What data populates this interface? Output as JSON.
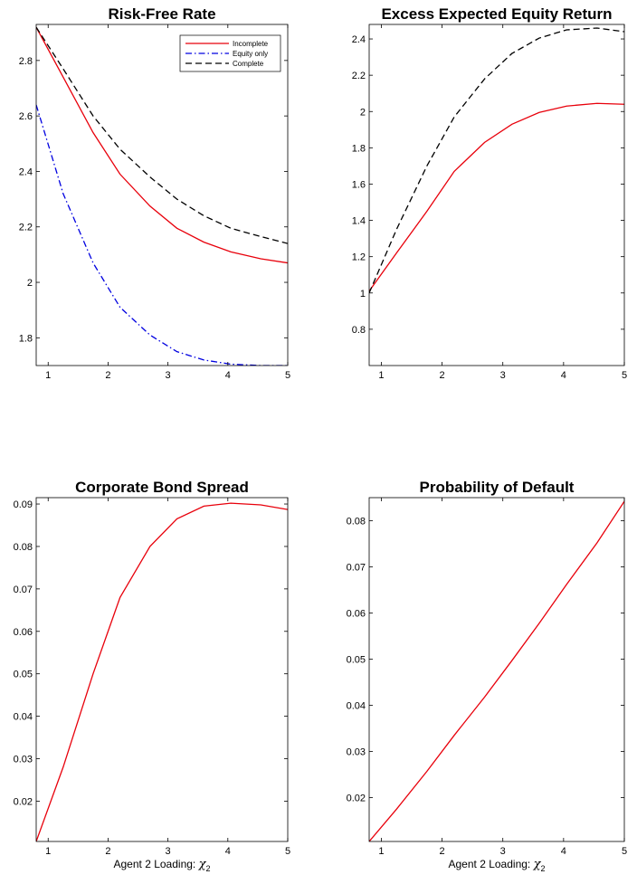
{
  "chart_data": [
    {
      "type": "line",
      "title": "Risk-Free Rate",
      "xlabel": "",
      "x": [
        0.8,
        1.25,
        1.75,
        2.2,
        2.7,
        3.15,
        3.6,
        4.05,
        4.55,
        5.0
      ],
      "xlim": [
        0.8,
        5
      ],
      "ylim": [
        1.7,
        2.93
      ],
      "xticks": [
        1,
        2,
        3,
        4,
        5
      ],
      "yticks": [
        1.8,
        2.0,
        2.2,
        2.4,
        2.6,
        2.8
      ],
      "ytick_labels": [
        "1.8",
        "2",
        "2.2",
        "2.4",
        "2.6",
        "2.8"
      ],
      "legend": "top-right",
      "series": [
        {
          "name": "Incomplete",
          "color": "#e8000b",
          "dash": "solid",
          "values": [
            2.92,
            2.74,
            2.54,
            2.39,
            2.275,
            2.195,
            2.145,
            2.11,
            2.085,
            2.07
          ]
        },
        {
          "name": "Equity only",
          "color": "#0000e0",
          "dash": "dashdot",
          "values": [
            2.64,
            2.32,
            2.07,
            1.91,
            1.81,
            1.75,
            1.72,
            1.705,
            1.7,
            1.7
          ]
        },
        {
          "name": "Complete",
          "color": "#000000",
          "dash": "dashed",
          "values": [
            2.92,
            2.77,
            2.6,
            2.48,
            2.38,
            2.3,
            2.24,
            2.195,
            2.165,
            2.14
          ]
        }
      ]
    },
    {
      "type": "line",
      "title": "Excess Expected Equity Return",
      "xlabel": "",
      "x": [
        0.8,
        1.25,
        1.75,
        2.2,
        2.7,
        3.15,
        3.6,
        4.05,
        4.55,
        5.0
      ],
      "xlim": [
        0.8,
        5
      ],
      "ylim": [
        0.6,
        2.48
      ],
      "xticks": [
        1,
        2,
        3,
        4,
        5
      ],
      "yticks": [
        0.8,
        1.0,
        1.2,
        1.4,
        1.6,
        1.8,
        2.0,
        2.2,
        2.4
      ],
      "ytick_labels": [
        "0.8",
        "1",
        "1.2",
        "1.4",
        "1.6",
        "1.8",
        "2",
        "2.2",
        "2.4"
      ],
      "series": [
        {
          "name": "",
          "color": "#e8000b",
          "dash": "solid",
          "values": [
            1.01,
            1.22,
            1.45,
            1.67,
            1.83,
            1.93,
            1.995,
            2.03,
            2.045,
            2.04
          ]
        },
        {
          "name": "",
          "color": "#000000",
          "dash": "dashed",
          "values": [
            1.0,
            1.35,
            1.7,
            1.97,
            2.18,
            2.32,
            2.405,
            2.45,
            2.46,
            2.44
          ]
        }
      ]
    },
    {
      "type": "line",
      "title": "Corporate Bond Spread",
      "xlabel_text": "Agent 2 Loading: ",
      "xlabel_symbol": "χ",
      "xlabel_sub": "2",
      "x": [
        0.8,
        1.25,
        1.75,
        2.2,
        2.7,
        3.15,
        3.6,
        4.05,
        4.55,
        5.0
      ],
      "xlim": [
        0.8,
        5
      ],
      "ylim": [
        0.0105,
        0.0915
      ],
      "xticks": [
        1,
        2,
        3,
        4,
        5
      ],
      "yticks": [
        0.02,
        0.03,
        0.04,
        0.05,
        0.06,
        0.07,
        0.08,
        0.09
      ],
      "ytick_labels": [
        "0.02",
        "0.03",
        "0.04",
        "0.05",
        "0.06",
        "0.07",
        "0.08",
        "0.09"
      ],
      "series": [
        {
          "name": "",
          "color": "#e8000b",
          "dash": "solid",
          "values": [
            0.0105,
            0.028,
            0.05,
            0.068,
            0.08,
            0.0865,
            0.0895,
            0.0902,
            0.0898,
            0.0887
          ]
        }
      ]
    },
    {
      "type": "line",
      "title": "Probability of Default",
      "xlabel_text": "Agent 2 Loading: ",
      "xlabel_symbol": "χ",
      "xlabel_sub": "2",
      "x": [
        0.8,
        1.25,
        1.75,
        2.2,
        2.7,
        3.15,
        3.6,
        4.05,
        4.55,
        5.0
      ],
      "xlim": [
        0.8,
        5
      ],
      "ylim": [
        0.0105,
        0.085
      ],
      "xticks": [
        1,
        2,
        3,
        4,
        5
      ],
      "yticks": [
        0.02,
        0.03,
        0.04,
        0.05,
        0.06,
        0.07,
        0.08
      ],
      "ytick_labels": [
        "0.02",
        "0.03",
        "0.04",
        "0.05",
        "0.06",
        "0.07",
        "0.08"
      ],
      "series": [
        {
          "name": "",
          "color": "#e8000b",
          "dash": "solid",
          "values": [
            0.0105,
            0.0175,
            0.0257,
            0.0335,
            0.0418,
            0.0497,
            0.0578,
            0.0662,
            0.0752,
            0.0842
          ]
        }
      ]
    }
  ]
}
